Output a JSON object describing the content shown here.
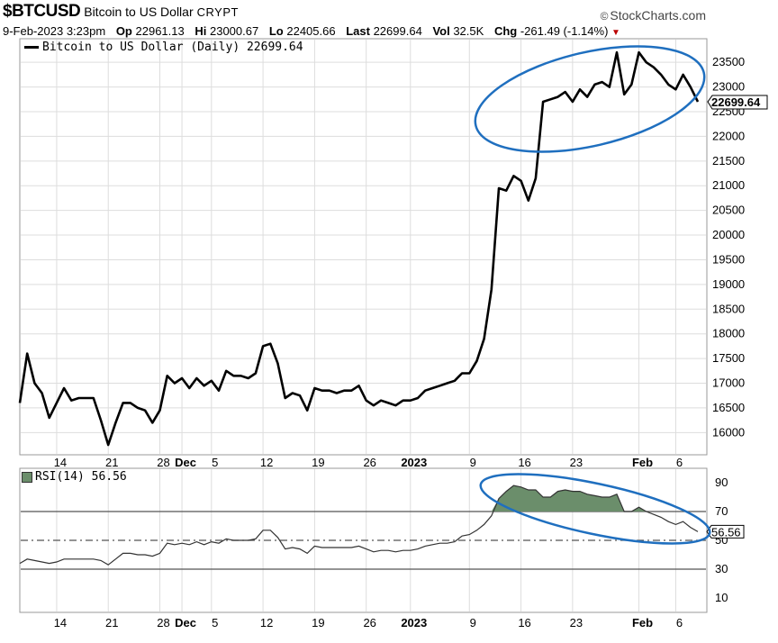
{
  "header": {
    "symbol": "$BTCUSD",
    "description": "Bitcoin to US Dollar",
    "type": "CRYPT",
    "brand": "StockCharts.com",
    "date": "9-Feb-2023 3:23pm",
    "op_label": "Op",
    "op": "22961.13",
    "hi_label": "Hi",
    "hi": "23000.67",
    "lo_label": "Lo",
    "lo": "22405.66",
    "last_label": "Last",
    "last": "22699.64",
    "vol_label": "Vol",
    "vol": "32.5K",
    "chg_label": "Chg",
    "chg": "-261.49 (-1.14%)"
  },
  "legend": {
    "price": "Bitcoin to US Dollar (Daily) 22699.64",
    "rsi": "RSI(14) 56.56"
  },
  "colors": {
    "line": "#000000",
    "rsi_fill": "#6b8e6b",
    "annotation": "#1f6fbf",
    "grid": "#dddddd"
  },
  "chart_data": [
    {
      "type": "line",
      "title": "Bitcoin to US Dollar (Daily)",
      "ylim": [
        15550,
        23850
      ],
      "yticks": [
        16000,
        16500,
        17000,
        17500,
        18000,
        18500,
        19000,
        19500,
        20000,
        20500,
        21000,
        21500,
        22000,
        22500,
        23000,
        23500
      ],
      "xticks": [
        {
          "x": "2022-11-14",
          "label": "14"
        },
        {
          "x": "2022-11-21",
          "label": "21"
        },
        {
          "x": "2022-11-28",
          "label": "28"
        },
        {
          "x": "2022-12-01",
          "label": "Dec"
        },
        {
          "x": "2022-12-05",
          "label": "5"
        },
        {
          "x": "2022-12-12",
          "label": "12"
        },
        {
          "x": "2022-12-19",
          "label": "19"
        },
        {
          "x": "2022-12-26",
          "label": "26"
        },
        {
          "x": "2023-01-01",
          "label": "2023"
        },
        {
          "x": "2023-01-09",
          "label": "9"
        },
        {
          "x": "2023-01-16",
          "label": "16"
        },
        {
          "x": "2023-01-23",
          "label": "23"
        },
        {
          "x": "2023-02-01",
          "label": "Feb"
        },
        {
          "x": "2023-02-06",
          "label": "6"
        }
      ],
      "last_value_label": "22699.64",
      "series": [
        {
          "name": "Bitcoin to US Dollar",
          "x": [
            "2022-11-09",
            "2022-11-10",
            "2022-11-11",
            "2022-11-12",
            "2022-11-13",
            "2022-11-14",
            "2022-11-15",
            "2022-11-16",
            "2022-11-17",
            "2022-11-18",
            "2022-11-19",
            "2022-11-20",
            "2022-11-21",
            "2022-11-22",
            "2022-11-23",
            "2022-11-24",
            "2022-11-25",
            "2022-11-26",
            "2022-11-27",
            "2022-11-28",
            "2022-11-29",
            "2022-11-30",
            "2022-12-01",
            "2022-12-02",
            "2022-12-03",
            "2022-12-04",
            "2022-12-05",
            "2022-12-06",
            "2022-12-07",
            "2022-12-08",
            "2022-12-09",
            "2022-12-10",
            "2022-12-11",
            "2022-12-12",
            "2022-12-13",
            "2022-12-14",
            "2022-12-15",
            "2022-12-16",
            "2022-12-17",
            "2022-12-18",
            "2022-12-19",
            "2022-12-20",
            "2022-12-21",
            "2022-12-22",
            "2022-12-23",
            "2022-12-24",
            "2022-12-25",
            "2022-12-26",
            "2022-12-27",
            "2022-12-28",
            "2022-12-29",
            "2022-12-30",
            "2022-12-31",
            "2023-01-01",
            "2023-01-02",
            "2023-01-03",
            "2023-01-04",
            "2023-01-05",
            "2023-01-06",
            "2023-01-07",
            "2023-01-08",
            "2023-01-09",
            "2023-01-10",
            "2023-01-11",
            "2023-01-12",
            "2023-01-13",
            "2023-01-14",
            "2023-01-15",
            "2023-01-16",
            "2023-01-17",
            "2023-01-18",
            "2023-01-19",
            "2023-01-20",
            "2023-01-21",
            "2023-01-22",
            "2023-01-23",
            "2023-01-24",
            "2023-01-25",
            "2023-01-26",
            "2023-01-27",
            "2023-01-28",
            "2023-01-29",
            "2023-01-30",
            "2023-01-31",
            "2023-02-01",
            "2023-02-02",
            "2023-02-03",
            "2023-02-04",
            "2023-02-05",
            "2023-02-06",
            "2023-02-07",
            "2023-02-08",
            "2023-02-09"
          ],
          "values": [
            16600,
            17600,
            17000,
            16800,
            16300,
            16600,
            16900,
            16650,
            16700,
            16700,
            16700,
            16250,
            15750,
            16200,
            16600,
            16600,
            16500,
            16450,
            16200,
            16450,
            17150,
            17000,
            17100,
            16900,
            17100,
            16950,
            17050,
            16850,
            17250,
            17150,
            17150,
            17100,
            17200,
            17750,
            17800,
            17400,
            16700,
            16800,
            16750,
            16450,
            16900,
            16850,
            16850,
            16800,
            16850,
            16850,
            16950,
            16650,
            16550,
            16650,
            16600,
            16550,
            16650,
            16650,
            16700,
            16850,
            16900,
            16950,
            17000,
            17050,
            17200,
            17200,
            17450,
            17900,
            18900,
            20950,
            20900,
            21200,
            21100,
            20700,
            21150,
            22700,
            22750,
            22800,
            22900,
            22700,
            22950,
            22800,
            23050,
            23100,
            23000,
            23700,
            22850,
            23050,
            23700,
            23500,
            23400,
            23250,
            23050,
            22950,
            23250,
            23000,
            22700
          ]
        }
      ]
    },
    {
      "type": "area",
      "title": "RSI(14)",
      "ylim": [
        0,
        100
      ],
      "yticks": [
        10,
        30,
        50,
        70,
        90
      ],
      "reference_lines": [
        30,
        50,
        70
      ],
      "last_value_label": "56.56",
      "series": [
        {
          "name": "RSI(14)",
          "x": [
            "2022-11-09",
            "2022-11-10",
            "2022-11-11",
            "2022-11-12",
            "2022-11-13",
            "2022-11-14",
            "2022-11-15",
            "2022-11-16",
            "2022-11-17",
            "2022-11-18",
            "2022-11-19",
            "2022-11-20",
            "2022-11-21",
            "2022-11-22",
            "2022-11-23",
            "2022-11-24",
            "2022-11-25",
            "2022-11-26",
            "2022-11-27",
            "2022-11-28",
            "2022-11-29",
            "2022-11-30",
            "2022-12-01",
            "2022-12-02",
            "2022-12-03",
            "2022-12-04",
            "2022-12-05",
            "2022-12-06",
            "2022-12-07",
            "2022-12-08",
            "2022-12-09",
            "2022-12-10",
            "2022-12-11",
            "2022-12-12",
            "2022-12-13",
            "2022-12-14",
            "2022-12-15",
            "2022-12-16",
            "2022-12-17",
            "2022-12-18",
            "2022-12-19",
            "2022-12-20",
            "2022-12-21",
            "2022-12-22",
            "2022-12-23",
            "2022-12-24",
            "2022-12-25",
            "2022-12-26",
            "2022-12-27",
            "2022-12-28",
            "2022-12-29",
            "2022-12-30",
            "2022-12-31",
            "2023-01-01",
            "2023-01-02",
            "2023-01-03",
            "2023-01-04",
            "2023-01-05",
            "2023-01-06",
            "2023-01-07",
            "2023-01-08",
            "2023-01-09",
            "2023-01-10",
            "2023-01-11",
            "2023-01-12",
            "2023-01-13",
            "2023-01-14",
            "2023-01-15",
            "2023-01-16",
            "2023-01-17",
            "2023-01-18",
            "2023-01-19",
            "2023-01-20",
            "2023-01-21",
            "2023-01-22",
            "2023-01-23",
            "2023-01-24",
            "2023-01-25",
            "2023-01-26",
            "2023-01-27",
            "2023-01-28",
            "2023-01-29",
            "2023-01-30",
            "2023-01-31",
            "2023-02-01",
            "2023-02-02",
            "2023-02-03",
            "2023-02-04",
            "2023-02-05",
            "2023-02-06",
            "2023-02-07",
            "2023-02-08",
            "2023-02-09"
          ],
          "values": [
            34,
            37,
            36,
            35,
            34,
            35,
            37,
            37,
            37,
            37,
            37,
            36,
            33,
            37,
            41,
            41,
            40,
            40,
            39,
            41,
            48,
            47,
            48,
            47,
            49,
            47,
            49,
            48,
            51,
            50,
            50,
            50,
            51,
            57,
            57,
            52,
            44,
            45,
            44,
            41,
            46,
            45,
            45,
            45,
            45,
            45,
            46,
            44,
            42,
            43,
            43,
            42,
            43,
            43,
            44,
            46,
            47,
            48,
            48,
            49,
            53,
            54,
            57,
            61,
            67,
            79,
            84,
            88,
            87,
            85,
            85,
            80,
            80,
            84,
            85,
            84,
            84,
            82,
            81,
            80,
            80,
            82,
            70,
            70,
            73,
            70,
            68,
            66,
            63,
            61,
            63,
            59,
            56
          ]
        }
      ]
    }
  ]
}
